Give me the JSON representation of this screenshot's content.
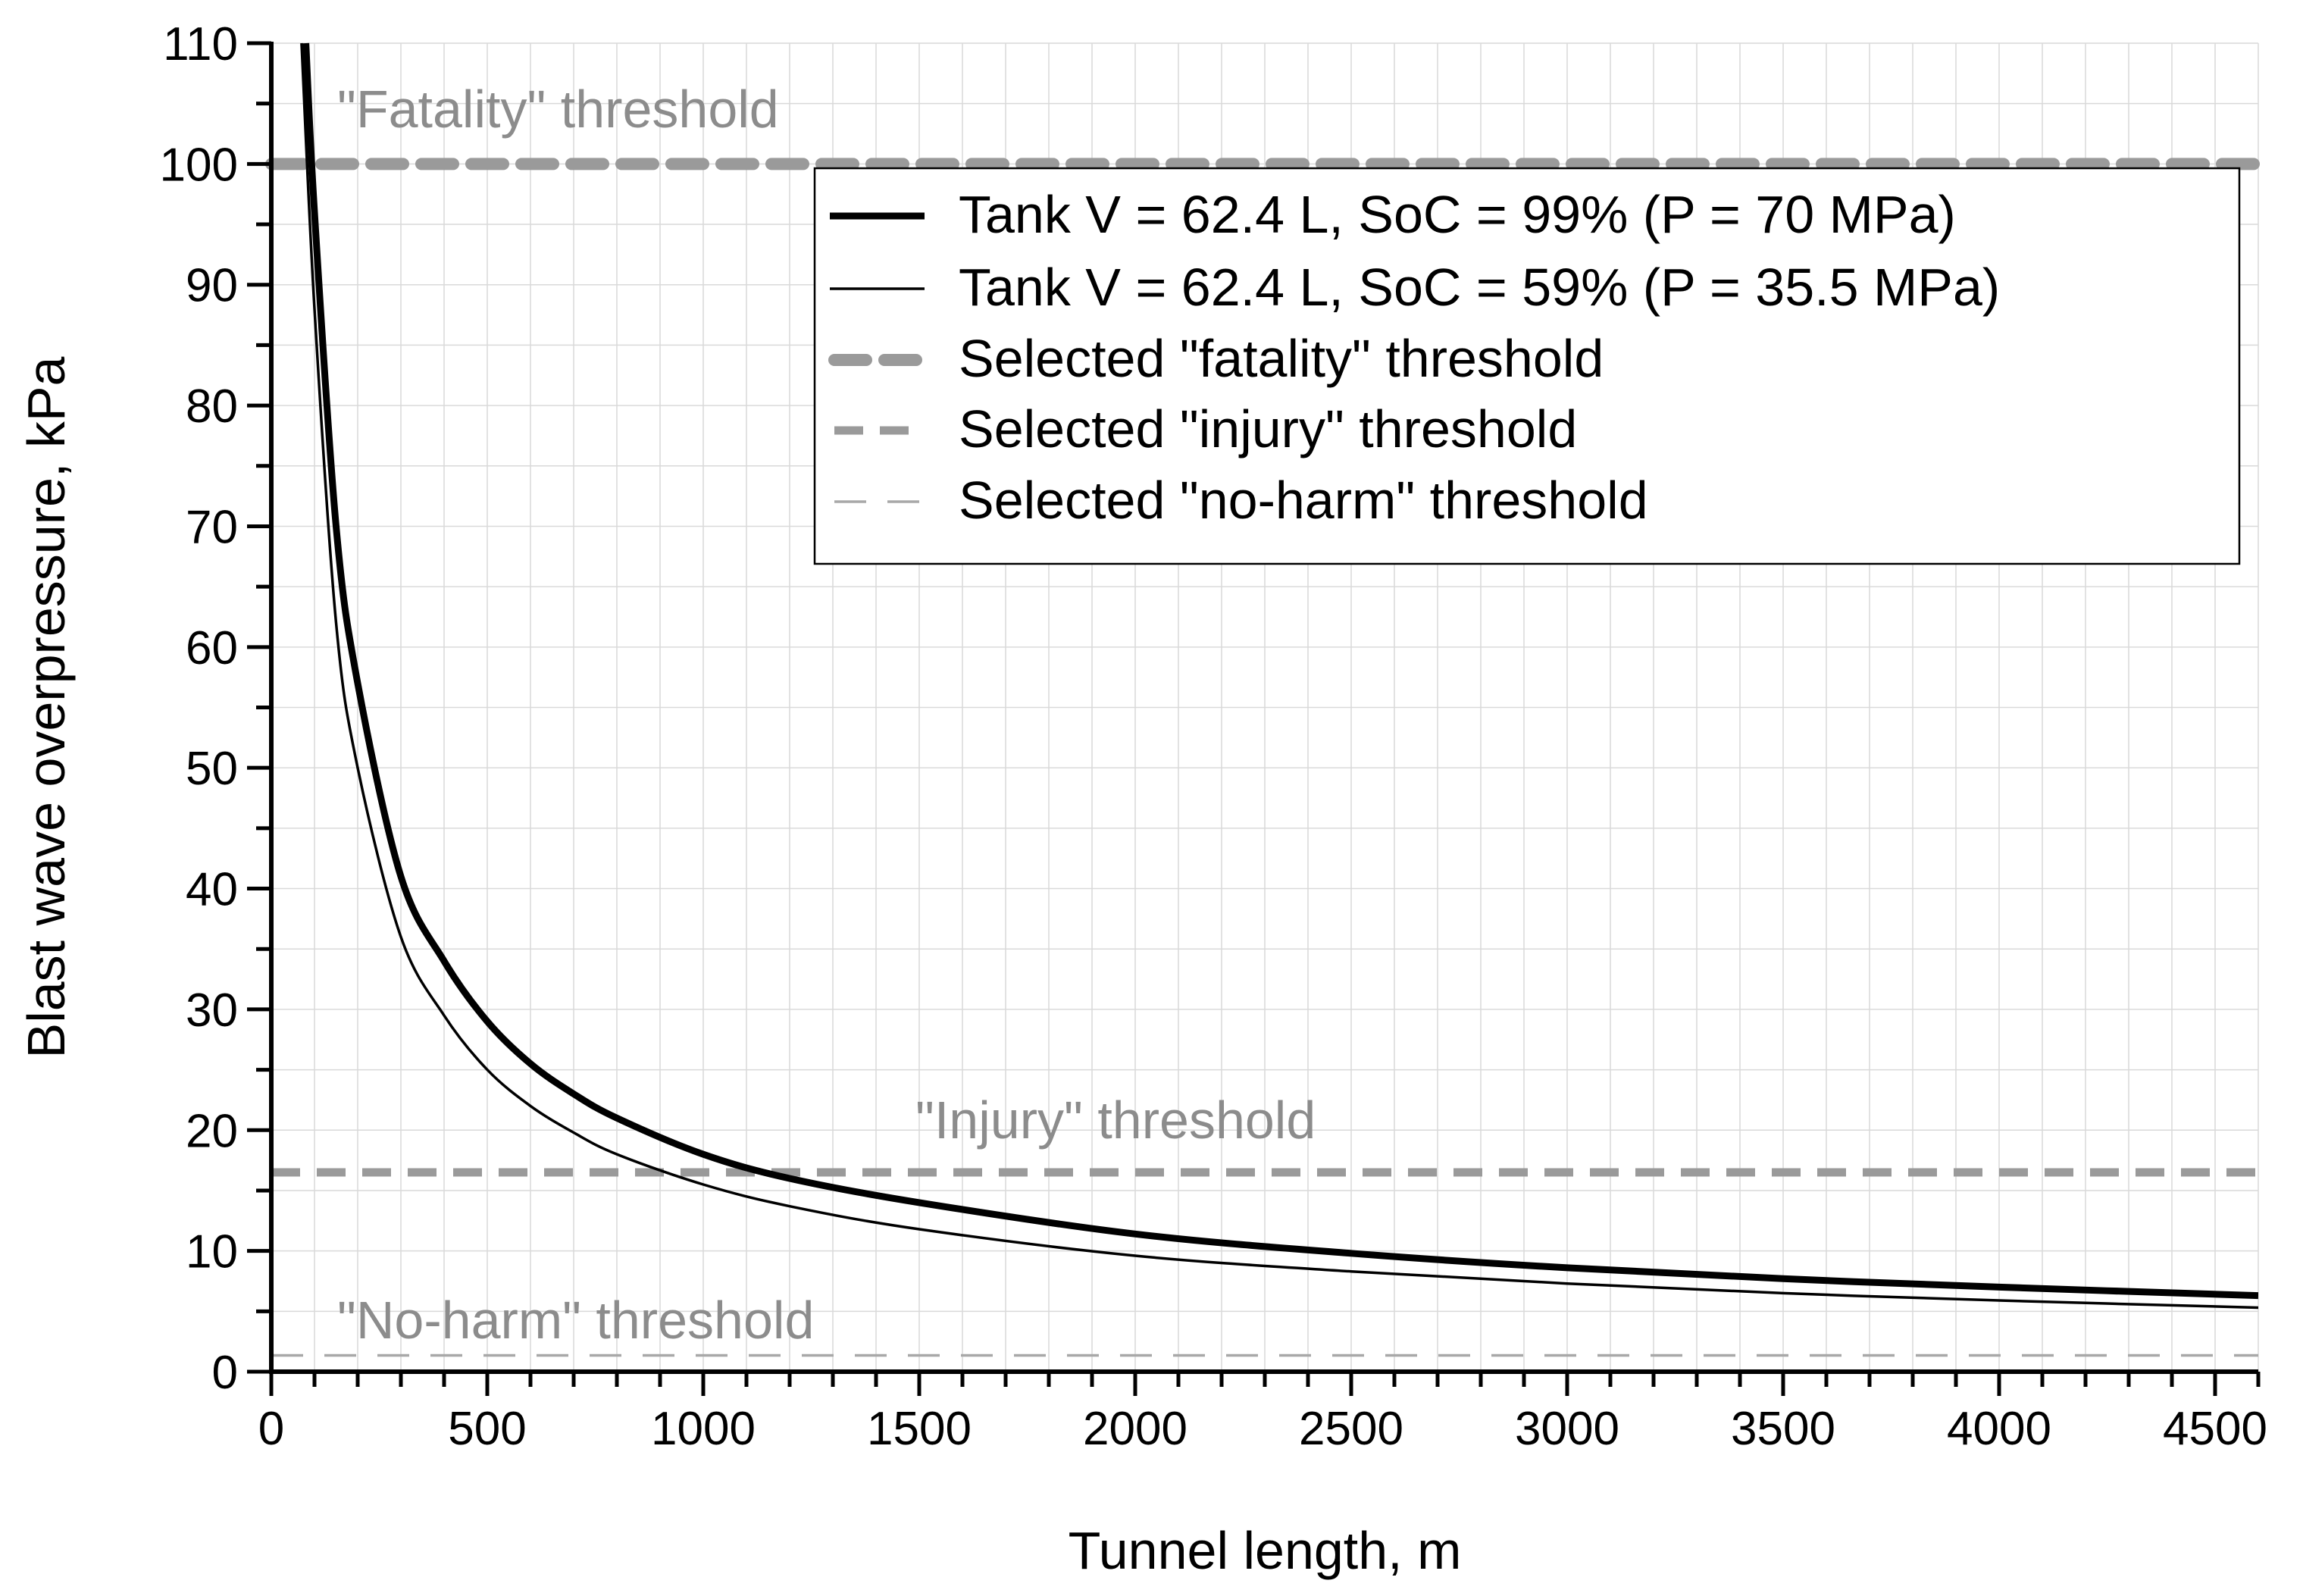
{
  "chart_data": {
    "type": "line",
    "xlabel": "Tunnel length, m",
    "ylabel": "Blast wave overpressure, kPa",
    "xlim": [
      0,
      4600
    ],
    "ylim": [
      0,
      110
    ],
    "x_ticks": [
      0,
      500,
      1000,
      1500,
      2000,
      2500,
      3000,
      3500,
      4000,
      4500
    ],
    "x_tick_labels": [
      "0",
      "500",
      "1000",
      "1500",
      "2000",
      "2500",
      "3000",
      "3500",
      "4000",
      "4500"
    ],
    "y_ticks": [
      0,
      10,
      20,
      30,
      40,
      50,
      60,
      70,
      80,
      90,
      100,
      110
    ],
    "y_tick_labels": [
      "0",
      "10",
      "20",
      "30",
      "40",
      "50",
      "60",
      "70",
      "80",
      "90",
      "100",
      "110"
    ],
    "grid": true,
    "legend_position": "top-right",
    "series": [
      {
        "name": "Tank V = 62.4 L, SoC = 99% (P = 70 MPa)",
        "style": "thick-solid",
        "color": "#000000",
        "x": [
          80,
          100,
          150,
          200,
          300,
          400,
          500,
          600,
          700,
          800,
          1000,
          1200,
          1500,
          2000,
          2500,
          3000,
          3500,
          4000,
          4600
        ],
        "values": [
          110,
          96,
          70,
          57,
          41,
          34,
          29,
          25.5,
          23,
          21,
          18,
          16,
          14,
          11.4,
          9.8,
          8.6,
          7.7,
          7.0,
          6.3
        ]
      },
      {
        "name": "Tank V = 62.4 L, SoC = 59% (P = 35.5 MPa)",
        "style": "thin-solid",
        "color": "#000000",
        "x": [
          70,
          100,
          150,
          200,
          300,
          400,
          500,
          600,
          700,
          800,
          1000,
          1200,
          1500,
          2000,
          2500,
          3000,
          3500,
          4000,
          4600
        ],
        "values": [
          110,
          88,
          62,
          50,
          36,
          29.5,
          25,
          22,
          19.8,
          18,
          15.5,
          13.7,
          11.8,
          9.6,
          8.3,
          7.3,
          6.5,
          5.9,
          5.3
        ]
      }
    ],
    "thresholds": [
      {
        "name": "Selected \"fatality\" threshold",
        "value": 100,
        "style": "dotted-thick",
        "color": "#9a9a9a",
        "annotation": "\"Fatality\" threshold"
      },
      {
        "name": "Selected \"injury\" threshold",
        "value": 16.5,
        "style": "dashed-medium",
        "color": "#9a9a9a",
        "annotation": "\"Injury\" threshold"
      },
      {
        "name": "Selected \"no-harm\" threshold",
        "value": 1.35,
        "style": "dashed-thin",
        "color": "#a8a8a8",
        "annotation": "\"No-harm\" threshold"
      }
    ]
  }
}
